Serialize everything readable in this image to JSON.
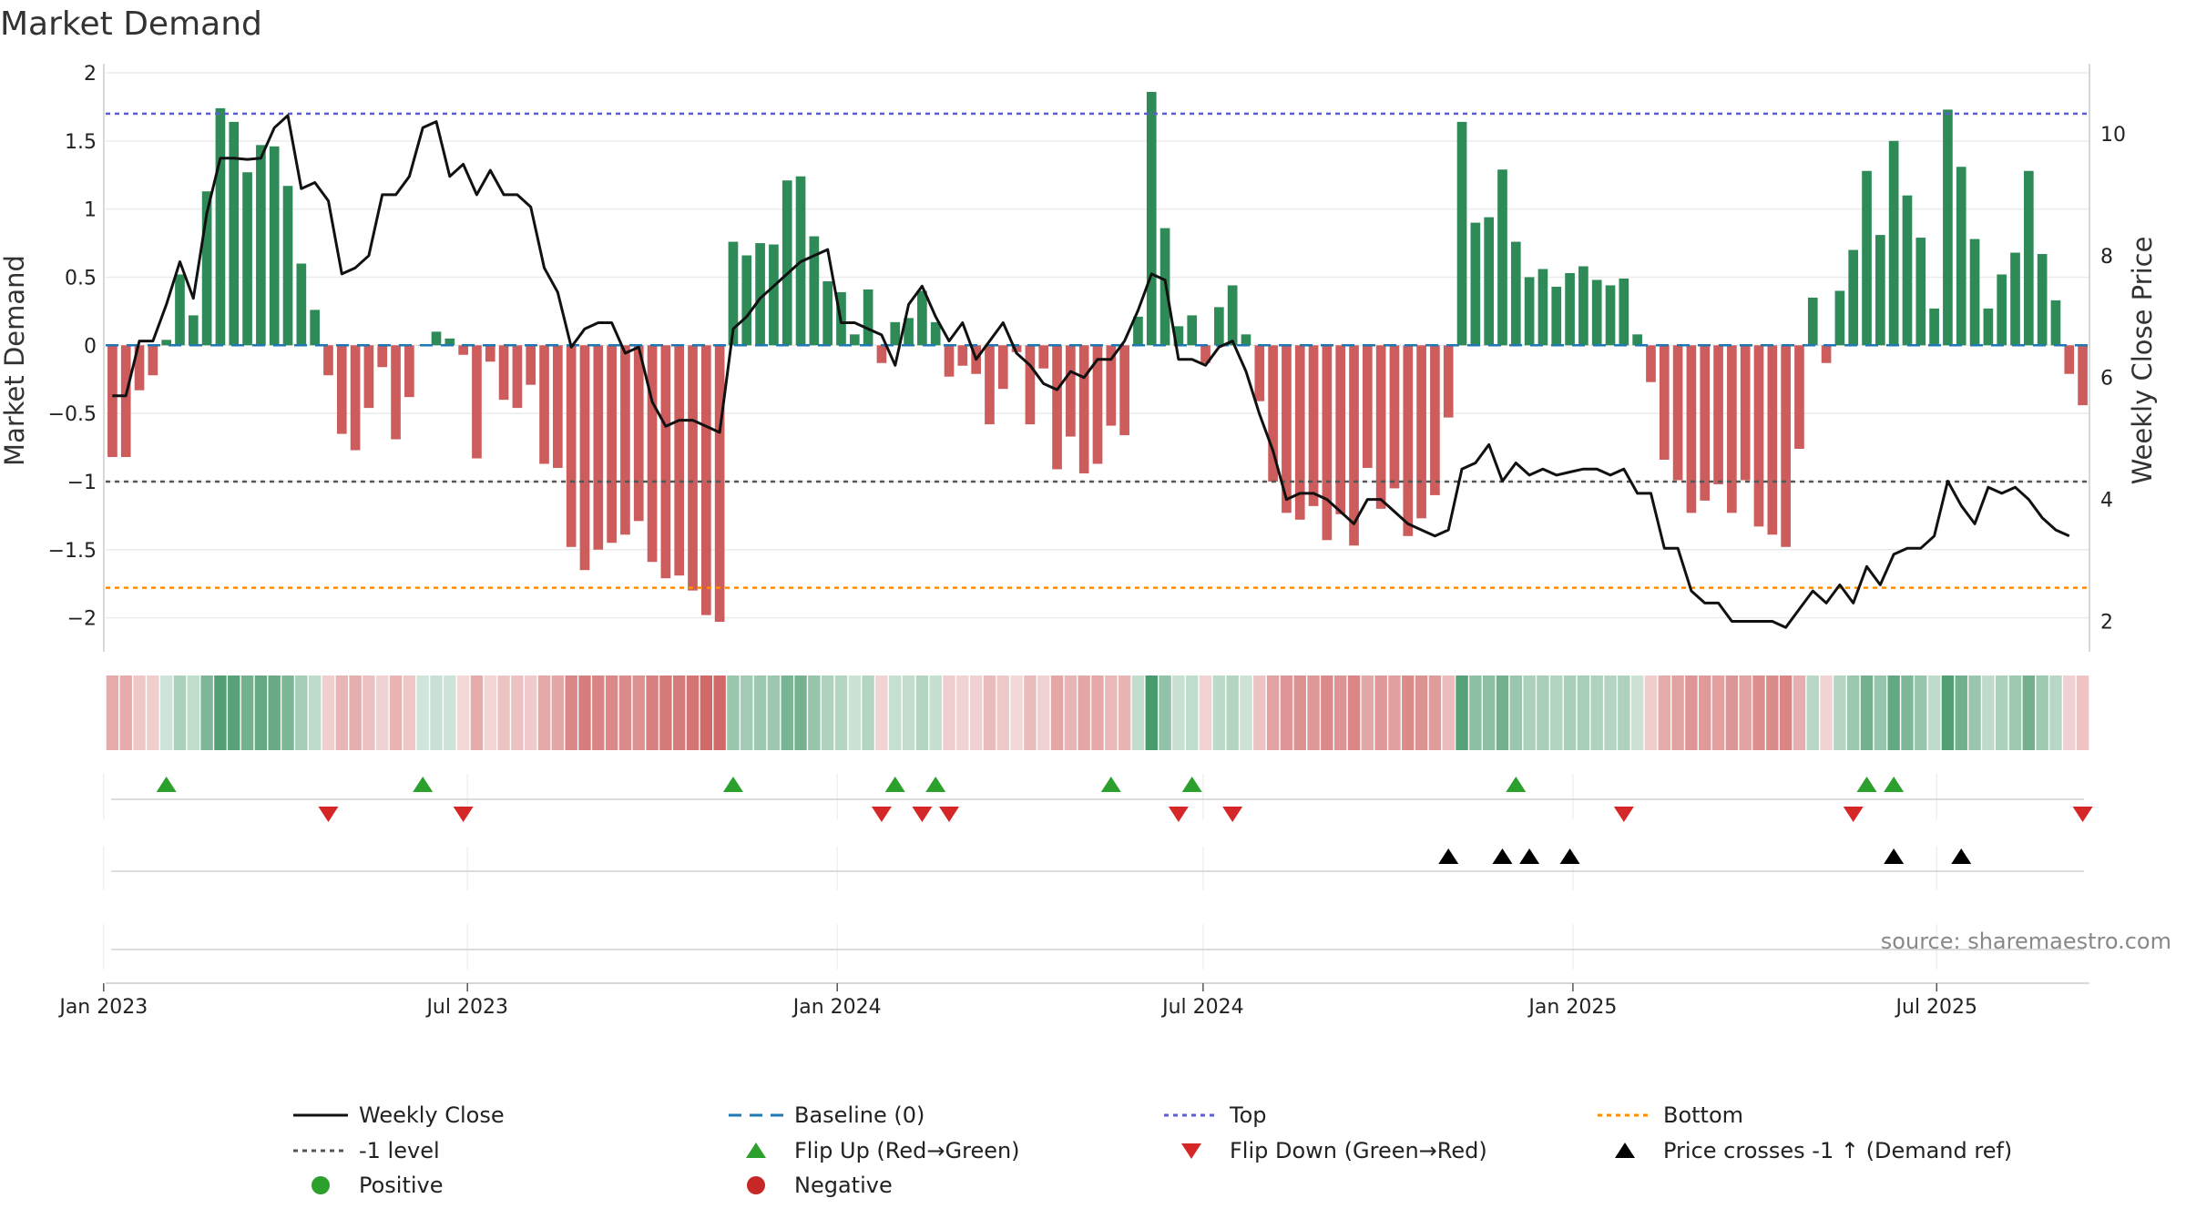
{
  "chart_data": {
    "type": "bar",
    "title": "Market Demand",
    "ylabel_left": "Market Demand",
    "ylabel_right": "Weekly Close Price",
    "ylim_left": [
      -2.25,
      2.0
    ],
    "ylim_right": [
      1.5,
      11.0
    ],
    "left_ticks": [
      2,
      1.5,
      1,
      0.5,
      0,
      -0.5,
      -1,
      -1.5,
      -2
    ],
    "left_tick_labels": [
      "2",
      "1.5",
      "1",
      "0.5",
      "0",
      "−0.5",
      "−1",
      "−1.5",
      "−2"
    ],
    "right_ticks": [
      10,
      8,
      6,
      4,
      2
    ],
    "right_tick_labels": [
      "10",
      "8",
      "6",
      "4",
      "2"
    ],
    "x_start": "2023-01-02",
    "x_end": "2025-09-15",
    "x_tick_labels": [
      {
        "date": "2023-01-01",
        "label": "Jan 2023"
      },
      {
        "date": "2023-07-01",
        "label": "Jul 2023"
      },
      {
        "date": "2024-01-01",
        "label": "Jan 2024"
      },
      {
        "date": "2024-07-01",
        "label": "Jul 2024"
      },
      {
        "date": "2025-01-01",
        "label": "Jan 2025"
      },
      {
        "date": "2025-07-01",
        "label": "Jul 2025"
      }
    ],
    "levels": {
      "top": 1.7,
      "bottom": -1.78,
      "minus_one": -1.0,
      "baseline": 0.0
    },
    "demand": [
      -0.82,
      -0.82,
      -0.33,
      -0.22,
      0.04,
      0.52,
      0.22,
      1.13,
      1.74,
      1.64,
      1.27,
      1.47,
      1.46,
      1.17,
      0.6,
      0.26,
      -0.22,
      -0.65,
      -0.77,
      -0.46,
      -0.16,
      -0.69,
      -0.38,
      0.0,
      0.1,
      0.05,
      -0.07,
      -0.83,
      -0.12,
      -0.4,
      -0.46,
      -0.29,
      -0.87,
      -0.9,
      -1.48,
      -1.65,
      -1.5,
      -1.45,
      -1.39,
      -1.29,
      -1.59,
      -1.71,
      -1.69,
      -1.8,
      -1.98,
      -2.03,
      0.76,
      0.66,
      0.75,
      0.74,
      1.21,
      1.24,
      0.8,
      0.47,
      0.39,
      0.08,
      0.41,
      -0.13,
      0.17,
      0.2,
      0.4,
      0.17,
      -0.23,
      -0.15,
      -0.21,
      -0.58,
      -0.32,
      -0.05,
      -0.58,
      -0.17,
      -0.91,
      -0.67,
      -0.94,
      -0.87,
      -0.59,
      -0.66,
      0.21,
      1.86,
      0.86,
      0.14,
      0.22,
      -0.13,
      0.28,
      0.44,
      0.08,
      -0.41,
      -1.0,
      -1.23,
      -1.28,
      -1.18,
      -1.43,
      -1.24,
      -1.47,
      -0.9,
      -1.2,
      -1.05,
      -1.4,
      -1.27,
      -1.1,
      -0.53,
      1.64,
      0.9,
      0.94,
      1.29,
      0.76,
      0.5,
      0.56,
      0.43,
      0.53,
      0.58,
      0.48,
      0.44,
      0.49,
      0.08,
      -0.27,
      -0.84,
      -0.99,
      -1.23,
      -1.14,
      -1.02,
      -1.23,
      -0.99,
      -1.33,
      -1.39,
      -1.48,
      -0.76,
      0.35,
      -0.13,
      0.4,
      0.7,
      1.28,
      0.81,
      1.5,
      1.1,
      0.79,
      0.27,
      1.73,
      1.31,
      0.78,
      0.27,
      0.52,
      0.68,
      1.28,
      0.67,
      0.33,
      -0.21,
      -0.44
    ],
    "weekly_close": [
      5.7,
      5.7,
      6.6,
      6.6,
      7.2,
      7.9,
      7.3,
      8.7,
      9.6,
      9.6,
      9.58,
      9.6,
      10.1,
      10.3,
      9.1,
      9.2,
      8.9,
      7.7,
      7.8,
      8.0,
      9.0,
      9.0,
      9.3,
      10.1,
      10.2,
      9.3,
      9.5,
      9.0,
      9.4,
      9.0,
      9.0,
      8.8,
      7.8,
      7.4,
      6.5,
      6.8,
      6.9,
      6.9,
      6.4,
      6.5,
      5.6,
      5.2,
      5.3,
      5.3,
      5.2,
      5.1,
      6.8,
      7.0,
      7.3,
      7.5,
      7.7,
      7.9,
      8.0,
      8.1,
      6.9,
      6.9,
      6.8,
      6.7,
      6.2,
      7.2,
      7.5,
      7.0,
      6.6,
      6.9,
      6.3,
      6.6,
      6.9,
      6.4,
      6.2,
      5.9,
      5.8,
      6.1,
      6.0,
      6.3,
      6.3,
      6.6,
      7.1,
      7.7,
      7.6,
      6.3,
      6.3,
      6.2,
      6.5,
      6.6,
      6.1,
      5.4,
      4.8,
      4.0,
      4.1,
      4.1,
      4.0,
      3.8,
      3.6,
      4.0,
      4.0,
      3.8,
      3.6,
      3.5,
      3.4,
      3.5,
      4.5,
      4.6,
      4.9,
      4.3,
      4.6,
      4.4,
      4.5,
      4.4,
      4.45,
      4.5,
      4.5,
      4.4,
      4.5,
      4.1,
      4.1,
      3.2,
      3.2,
      2.5,
      2.3,
      2.3,
      2.0,
      2.0,
      2.0,
      2.0,
      1.9,
      2.2,
      2.5,
      2.3,
      2.6,
      2.3,
      2.9,
      2.6,
      3.1,
      3.2,
      3.2,
      3.4,
      4.3,
      3.9,
      3.6,
      4.2,
      4.1,
      4.2,
      4.0,
      3.7,
      3.5,
      3.4
    ],
    "flip_up_weeks": [
      4,
      23,
      46,
      58,
      61,
      74,
      80,
      104,
      130,
      132
    ],
    "flip_down_weeks": [
      16,
      26,
      57,
      60,
      62,
      79,
      83,
      112,
      129,
      146
    ],
    "price_cross_weeks": [
      99,
      103,
      105,
      108,
      132,
      137
    ],
    "legend": [
      {
        "key": "weekly_close",
        "label": "Weekly Close"
      },
      {
        "key": "baseline",
        "label": "Baseline (0)"
      },
      {
        "key": "top",
        "label": "Top"
      },
      {
        "key": "bottom",
        "label": "Bottom"
      },
      {
        "key": "minus_one",
        "label": "-1 level"
      },
      {
        "key": "flip_up",
        "label": "Flip Up (Red→Green)"
      },
      {
        "key": "flip_down",
        "label": "Flip Down (Green→Red)"
      },
      {
        "key": "price_cross",
        "label": "Price crosses -1 ↑ (Demand ref)"
      },
      {
        "key": "positive",
        "label": "Positive"
      },
      {
        "key": "negative",
        "label": "Negative"
      }
    ],
    "source": "source: sharemaestro.com",
    "colors": {
      "positive": "#2e8b57",
      "negative": "#cd5c5c",
      "close": "#111111",
      "baseline": "#1f77b4",
      "top": "#5b5fc7",
      "bottom": "#ff8c00",
      "minus_one": "#555555",
      "flip_up": "#2ca02c",
      "flip_down": "#d62728",
      "price_cross": "#000000",
      "positive_dot": "#2ca02c",
      "negative_dot": "#c62828"
    }
  }
}
